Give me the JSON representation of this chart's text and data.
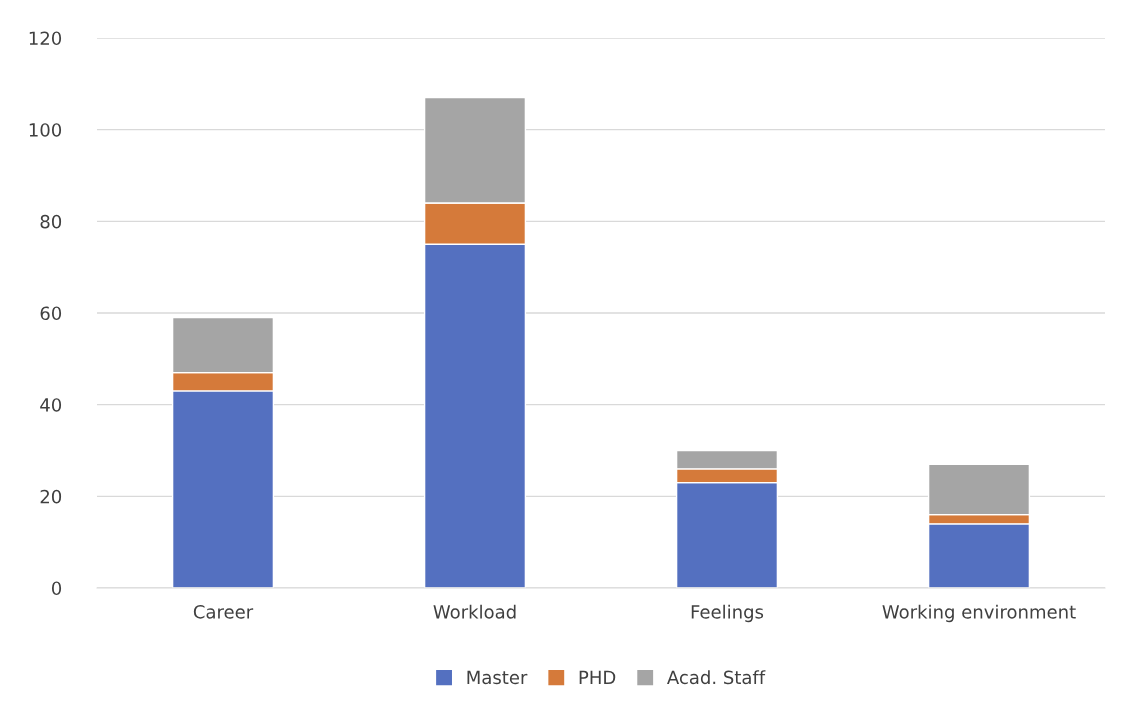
{
  "chart_data": {
    "type": "bar",
    "stacked": true,
    "categories": [
      "Career",
      "Workload",
      "Feelings",
      "Working environment"
    ],
    "series": [
      {
        "name": "Master",
        "color": "#5470c0",
        "values": [
          43,
          75,
          23,
          14
        ]
      },
      {
        "name": "PHD",
        "color": "#d57a3a",
        "values": [
          4,
          9,
          3,
          2
        ]
      },
      {
        "name": "Acad. Staff",
        "color": "#a5a5a5",
        "values": [
          12,
          23,
          4,
          11
        ]
      }
    ],
    "ylim": [
      0,
      120
    ],
    "yticks": [
      0,
      20,
      40,
      60,
      80,
      100,
      120
    ],
    "grid": "y",
    "legend": "bottom"
  }
}
